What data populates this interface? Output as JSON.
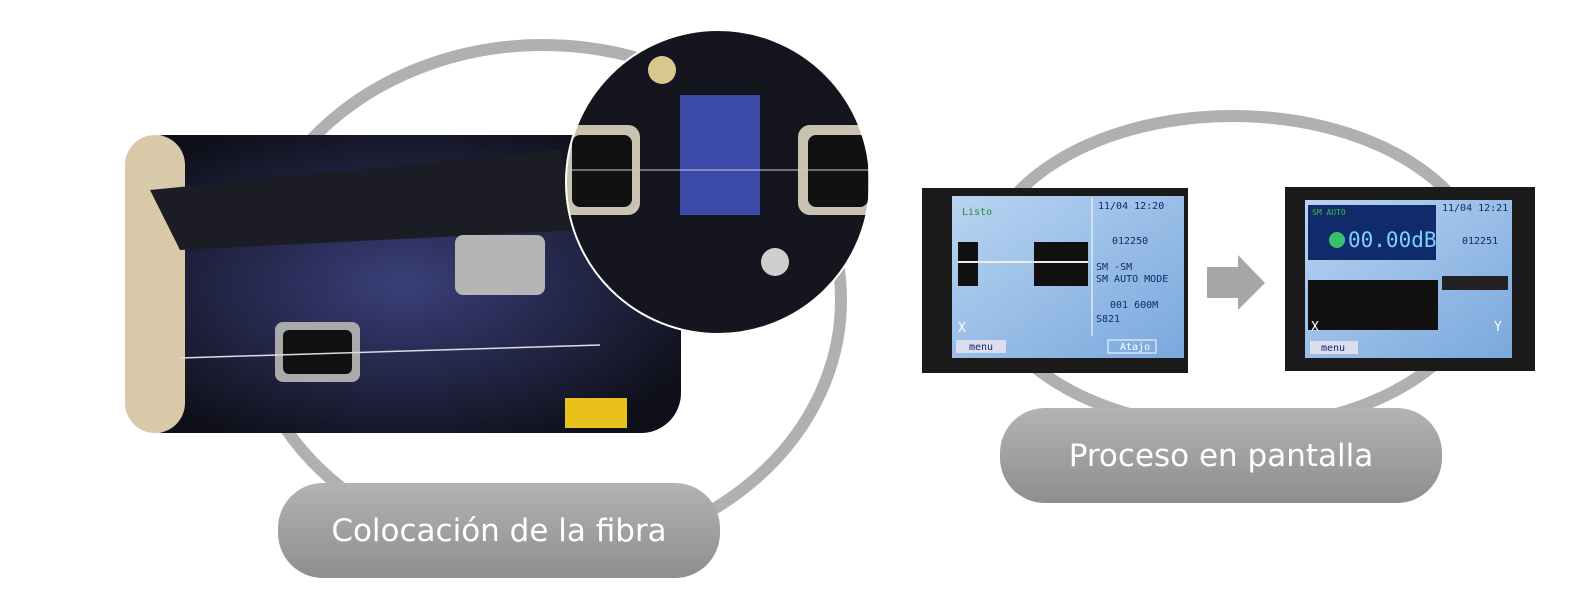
{
  "left": {
    "caption": "Colocación de la fibra"
  },
  "right": {
    "caption": "Proceso en pantalla",
    "screen1": {
      "status": "Listo",
      "datetime": "11/04 12:20",
      "counter": "012250",
      "fiber": "SM -SM",
      "mode": "SM AUTO MODE",
      "program": "001 600M",
      "code": "S821",
      "close": "X",
      "menu": "menu",
      "shortcut": "Atajo"
    },
    "screen2": {
      "status": "SM AUTO",
      "datetime": "11/04 12:21",
      "counter": "012251",
      "loss": "00.00dB",
      "close": "X",
      "next": "Y",
      "menu": "menu"
    }
  }
}
